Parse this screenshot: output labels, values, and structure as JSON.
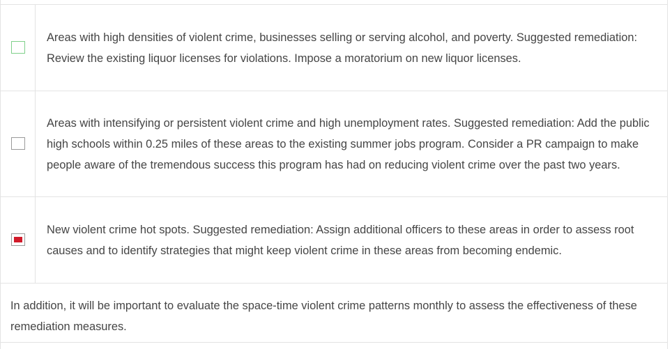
{
  "legend": {
    "rows": [
      {
        "symbol": "green-outline-square-icon",
        "text": "Areas with high densities of violent crime, businesses selling or serving alcohol, and poverty. Suggested remediation: Review the existing liquor licenses for violations. Impose a moratorium on new liquor licenses."
      },
      {
        "symbol": "grey-outline-square-icon",
        "text": "Areas with intensifying or persistent violent crime and high unemployment rates. Suggested remediation: Add the public high schools within 0.25 miles of these areas to the existing summer jobs program. Consider a PR campaign to make people aware of the tremendous success this program has had on reducing violent crime over the past two years."
      },
      {
        "symbol": "red-filled-square-icon",
        "text": "New violent crime hot spots. Suggested remediation: Assign additional officers to these areas in order to assess root causes and to identify strategies that might keep violent crime in these areas from becoming endemic."
      }
    ]
  },
  "note": {
    "text": "In addition, it will be important to evaluate the space-time violent crime patterns monthly to assess the effectiveness of these remediation measures."
  },
  "colors": {
    "green_outline": "#7fd08a",
    "grey_outline": "#9a9a9a",
    "red_fill": "#d11a2a",
    "border": "#e3e3e3",
    "text": "#454545"
  }
}
